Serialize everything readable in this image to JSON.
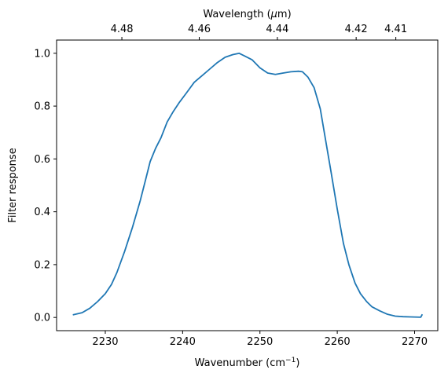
{
  "chart_data": {
    "type": "line",
    "xlabel": "Wavenumber (cm",
    "xlabel_sup": "−1",
    "xlabel_close": ")",
    "ylabel": "Filter response",
    "top_xlabel": "Wavelength (",
    "top_xlabel_mu": "μ",
    "top_xlabel_unit": "m)",
    "xlim": [
      2223.7,
      2273.0
    ],
    "ylim": [
      -0.05,
      1.05
    ],
    "x_ticks": [
      2230,
      2240,
      2250,
      2260,
      2270
    ],
    "x_tick_labels": [
      "2230",
      "2240",
      "2250",
      "2260",
      "2270"
    ],
    "y_ticks": [
      0.0,
      0.2,
      0.4,
      0.6,
      0.8,
      1.0
    ],
    "y_tick_labels": [
      "0.0",
      "0.2",
      "0.4",
      "0.6",
      "0.8",
      "1.0"
    ],
    "top_ticks_um": [
      4.48,
      4.46,
      4.44,
      4.42,
      4.41
    ],
    "top_tick_labels": [
      "4.48",
      "4.46",
      "4.44",
      "4.42",
      "4.41"
    ],
    "line_color": "#1f77b4",
    "grid": false,
    "series": [
      {
        "x": [
          2225.8,
          2227.0,
          2228.0,
          2229.0,
          2230.0,
          2230.8,
          2231.5,
          2232.5,
          2233.5,
          2234.5,
          2235.2,
          2235.8,
          2236.5,
          2237.2,
          2238.0,
          2238.8,
          2239.6,
          2240.5,
          2241.5,
          2242.5,
          2243.5,
          2244.5,
          2245.5,
          2246.5,
          2247.3,
          2248.0,
          2249.0,
          2250.0,
          2251.0,
          2252.0,
          2253.0,
          2254.0,
          2255.0,
          2255.5,
          2256.2,
          2257.0,
          2257.8,
          2258.5,
          2259.2,
          2260.0,
          2260.8,
          2261.5,
          2262.3,
          2263.0,
          2263.8,
          2264.5,
          2265.5,
          2266.5,
          2267.5,
          2268.5,
          2269.5,
          2270.8,
          2271.0
        ],
        "y": [
          0.01,
          0.018,
          0.035,
          0.06,
          0.09,
          0.125,
          0.17,
          0.25,
          0.34,
          0.44,
          0.52,
          0.59,
          0.64,
          0.68,
          0.74,
          0.78,
          0.815,
          0.85,
          0.89,
          0.915,
          0.94,
          0.965,
          0.985,
          0.995,
          1.0,
          0.99,
          0.975,
          0.945,
          0.925,
          0.92,
          0.925,
          0.93,
          0.932,
          0.93,
          0.91,
          0.87,
          0.79,
          0.67,
          0.55,
          0.41,
          0.28,
          0.2,
          0.13,
          0.09,
          0.06,
          0.04,
          0.025,
          0.012,
          0.005,
          0.003,
          0.002,
          0.001,
          0.012
        ]
      }
    ]
  }
}
